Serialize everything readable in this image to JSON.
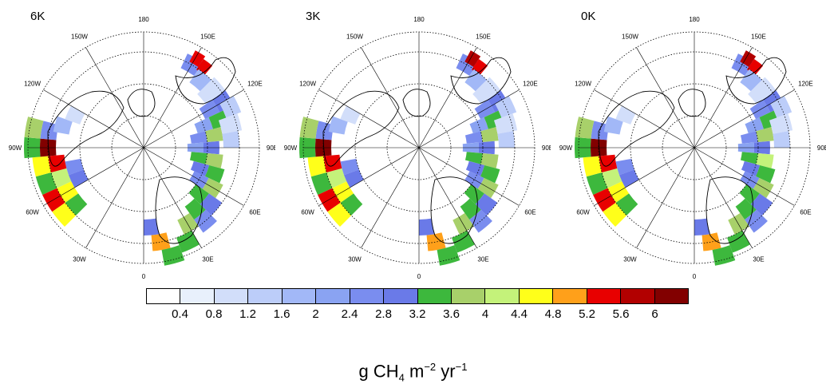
{
  "panels": [
    {
      "title": "6K"
    },
    {
      "title": "3K"
    },
    {
      "title": "0K"
    }
  ],
  "longitude_labels": [
    "180",
    "150E",
    "120E",
    "90E",
    "60E",
    "30E",
    "0",
    "30W",
    "60W",
    "90W",
    "120W",
    "150W"
  ],
  "colorbar": {
    "colors": [
      "#ffffff",
      "#e8f0fc",
      "#d2defa",
      "#bccdf9",
      "#a2b8f7",
      "#8aa3f2",
      "#7a8def",
      "#6a7ae8",
      "#3db83d",
      "#a8d06a",
      "#c4f27a",
      "#ffff1a",
      "#ffa01a",
      "#e80000",
      "#b20000",
      "#820000"
    ],
    "ticks": [
      "0.4",
      "0.8",
      "1.2",
      "1.6",
      "2",
      "2.4",
      "2.8",
      "3.2",
      "3.6",
      "4",
      "4.4",
      "4.8",
      "5.2",
      "5.6",
      "6"
    ]
  },
  "units": {
    "pre": "g CH",
    "sub1": "4",
    "mid1": " m",
    "sup1": "−2",
    "mid2": " yr",
    "sup2": "−1"
  }
}
